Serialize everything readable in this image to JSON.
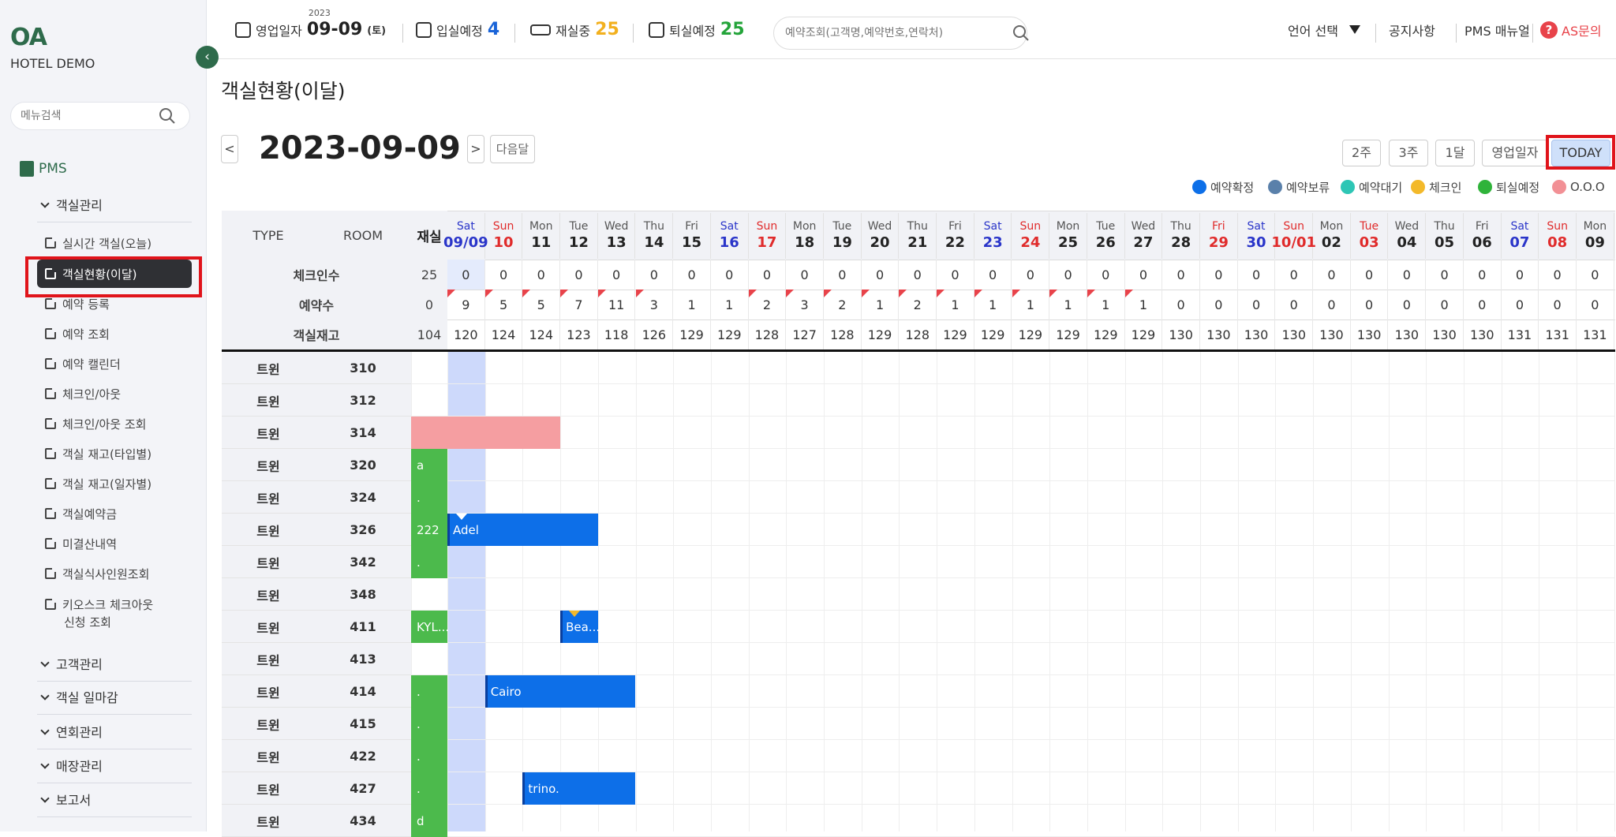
{
  "sidebar": {
    "logo": "OA",
    "hotel_name": "HOTEL DEMO",
    "search_placeholder": "메뉴검색",
    "pms_label": "PMS",
    "group_room": "객실관리",
    "items": [
      "실시간 객실(오늘)",
      "객실현황(이달)",
      "예약 등록",
      "예약 조회",
      "예약 캘린더",
      "체크인/아웃",
      "체크인/아웃 조회",
      "객실 재고(타입별)",
      "객실 재고(일자별)",
      "객실예약금",
      "미결산내역",
      "객실식사인원조회",
      "키오스크 체크아웃",
      "신청 조회"
    ],
    "groups": [
      "고객관리",
      "객실 일마감",
      "연회관리",
      "매장관리",
      "보고서"
    ]
  },
  "topbar": {
    "biz_label": "영업일자",
    "biz_year": "2023",
    "biz_date": "09-09",
    "biz_dow": "(토)",
    "arrival_label": "입실예정",
    "arrival_count": "4",
    "inhouse_label": "재실중",
    "inhouse_count": "25",
    "departure_label": "퇴실예정",
    "departure_count": "25",
    "search_placeholder": "예약조회(고객명,예약번호,연락처)",
    "language": "언어 선택",
    "notice": "공지사항",
    "manual": "PMS 매뉴얼",
    "as": "AS문의"
  },
  "main": {
    "page_title": "객실현황(이달)",
    "current_date": "2023-09-09",
    "prev_label": "<",
    "next_label": ">",
    "next_month": "다음달",
    "views": [
      "2주",
      "3주",
      "1달",
      "영업일자",
      "TODAY"
    ],
    "legend": [
      {
        "label": "예약확정",
        "color": "#0d6fe8"
      },
      {
        "label": "예약보류",
        "color": "#5a80aa"
      },
      {
        "label": "예약대기",
        "color": "#2ec6b5"
      },
      {
        "label": "체크인",
        "color": "#f3b92a"
      },
      {
        "label": "퇴실예정",
        "color": "#2fb33a"
      },
      {
        "label": "O.O.O",
        "color": "#f29095"
      }
    ]
  },
  "grid": {
    "col_type": "TYPE",
    "col_room": "ROOM",
    "col_inhouse": "재실",
    "row_checkin": "체크인수",
    "row_reservations": "예약수",
    "row_inventory": "객실재고",
    "days": [
      {
        "dow": "Sat",
        "num": "09/09",
        "kind": "sat"
      },
      {
        "dow": "Sun",
        "num": "10",
        "kind": "sun"
      },
      {
        "dow": "Mon",
        "num": "11",
        "kind": ""
      },
      {
        "dow": "Tue",
        "num": "12",
        "kind": ""
      },
      {
        "dow": "Wed",
        "num": "13",
        "kind": ""
      },
      {
        "dow": "Thu",
        "num": "14",
        "kind": ""
      },
      {
        "dow": "Fri",
        "num": "15",
        "kind": ""
      },
      {
        "dow": "Sat",
        "num": "16",
        "kind": "sat"
      },
      {
        "dow": "Sun",
        "num": "17",
        "kind": "sun"
      },
      {
        "dow": "Mon",
        "num": "18",
        "kind": ""
      },
      {
        "dow": "Tue",
        "num": "19",
        "kind": ""
      },
      {
        "dow": "Wed",
        "num": "20",
        "kind": ""
      },
      {
        "dow": "Thu",
        "num": "21",
        "kind": ""
      },
      {
        "dow": "Fri",
        "num": "22",
        "kind": ""
      },
      {
        "dow": "Sat",
        "num": "23",
        "kind": "sat"
      },
      {
        "dow": "Sun",
        "num": "24",
        "kind": "sun"
      },
      {
        "dow": "Mon",
        "num": "25",
        "kind": ""
      },
      {
        "dow": "Tue",
        "num": "26",
        "kind": ""
      },
      {
        "dow": "Wed",
        "num": "27",
        "kind": ""
      },
      {
        "dow": "Thu",
        "num": "28",
        "kind": ""
      },
      {
        "dow": "Fri",
        "num": "29",
        "kind": "hol"
      },
      {
        "dow": "Sat",
        "num": "30",
        "kind": "sat"
      },
      {
        "dow": "Sun",
        "num": "10/01",
        "kind": "sun"
      },
      {
        "dow": "Mon",
        "num": "02",
        "kind": ""
      },
      {
        "dow": "Tue",
        "num": "03",
        "kind": "hol"
      },
      {
        "dow": "Wed",
        "num": "04",
        "kind": ""
      },
      {
        "dow": "Thu",
        "num": "05",
        "kind": ""
      },
      {
        "dow": "Fri",
        "num": "06",
        "kind": ""
      },
      {
        "dow": "Sat",
        "num": "07",
        "kind": "sat"
      },
      {
        "dow": "Sun",
        "num": "08",
        "kind": "sun"
      },
      {
        "dow": "Mon",
        "num": "09",
        "kind": ""
      }
    ],
    "checkin_first": "25",
    "checkins": [
      "0",
      "0",
      "0",
      "0",
      "0",
      "0",
      "0",
      "0",
      "0",
      "0",
      "0",
      "0",
      "0",
      "0",
      "0",
      "0",
      "0",
      "0",
      "0",
      "0",
      "0",
      "0",
      "0",
      "0",
      "0",
      "0",
      "0",
      "0",
      "0",
      "0",
      "0"
    ],
    "reservations_first": "0",
    "reservations": [
      "9",
      "5",
      "5",
      "7",
      "11",
      "3",
      "1",
      "1",
      "2",
      "3",
      "2",
      "1",
      "2",
      "1",
      "1",
      "1",
      "1",
      "1",
      "1",
      "0",
      "0",
      "0",
      "0",
      "0",
      "0",
      "0",
      "0",
      "0",
      "0",
      "0",
      "0"
    ],
    "reservation_flags": [
      true,
      true,
      true,
      true,
      true,
      true,
      false,
      false,
      true,
      true,
      true,
      true,
      true,
      true,
      true,
      true,
      true,
      true,
      true,
      false,
      false,
      false,
      false,
      false,
      false,
      false,
      false,
      false,
      false,
      false,
      false
    ],
    "inventory_first": "104",
    "inventory": [
      "120",
      "124",
      "124",
      "123",
      "118",
      "126",
      "129",
      "129",
      "128",
      "127",
      "128",
      "129",
      "128",
      "129",
      "129",
      "129",
      "129",
      "129",
      "129",
      "130",
      "130",
      "130",
      "130",
      "130",
      "130",
      "130",
      "130",
      "130",
      "131",
      "131",
      "131"
    ],
    "rooms": [
      {
        "type": "트윈",
        "room": "310"
      },
      {
        "type": "트윈",
        "room": "312"
      },
      {
        "type": "트윈",
        "room": "314"
      },
      {
        "type": "트윈",
        "room": "320"
      },
      {
        "type": "트윈",
        "room": "324"
      },
      {
        "type": "트윈",
        "room": "326"
      },
      {
        "type": "트윈",
        "room": "342"
      },
      {
        "type": "트윈",
        "room": "348"
      },
      {
        "type": "트윈",
        "room": "411"
      },
      {
        "type": "트윈",
        "room": "413"
      },
      {
        "type": "트윈",
        "room": "414"
      },
      {
        "type": "트윈",
        "room": "415"
      },
      {
        "type": "트윈",
        "room": "422"
      },
      {
        "type": "트윈",
        "room": "427"
      },
      {
        "type": "트윈",
        "room": "434"
      }
    ],
    "bookings": [
      {
        "row": 2,
        "start": -1,
        "span": 4,
        "label": "",
        "status": "ooo"
      },
      {
        "row": 3,
        "start": -1,
        "span": 1,
        "label": "a",
        "status": "inhouse"
      },
      {
        "row": 4,
        "start": -1,
        "span": 1,
        "label": ".",
        "status": "inhouse"
      },
      {
        "row": 5,
        "start": -1,
        "span": 1,
        "label": "222",
        "status": "inhouse"
      },
      {
        "row": 5,
        "start": 0,
        "span": 4,
        "label": "Adel",
        "status": "confirmed",
        "marker": "white"
      },
      {
        "row": 6,
        "start": -1,
        "span": 1,
        "label": ".",
        "status": "inhouse"
      },
      {
        "row": 8,
        "start": -1,
        "span": 1,
        "label": "KYL...",
        "status": "inhouse"
      },
      {
        "row": 8,
        "start": 3,
        "span": 1,
        "label": "Bea...",
        "status": "confirmed",
        "marker": "yellow"
      },
      {
        "row": 10,
        "start": -1,
        "span": 1,
        "label": ".",
        "status": "inhouse"
      },
      {
        "row": 10,
        "start": 1,
        "span": 4,
        "label": "Cairo",
        "status": "confirmed"
      },
      {
        "row": 11,
        "start": -1,
        "span": 1,
        "label": ".",
        "status": "inhouse"
      },
      {
        "row": 12,
        "start": -1,
        "span": 1,
        "label": ".",
        "status": "inhouse"
      },
      {
        "row": 13,
        "start": -1,
        "span": 1,
        "label": ".",
        "status": "inhouse"
      },
      {
        "row": 13,
        "start": 2,
        "span": 3,
        "label": "trino.",
        "status": "confirmed"
      },
      {
        "row": 14,
        "start": -1,
        "span": 1,
        "label": "d",
        "status": "inhouse"
      }
    ],
    "colors": {
      "confirmed": "#0d6fe8",
      "inhouse": "#4cba4c",
      "ooo": "#f59ea1",
      "sat": "#2a35c9",
      "sun": "#e02b2b",
      "today_bg": "#cdd9fb"
    }
  }
}
